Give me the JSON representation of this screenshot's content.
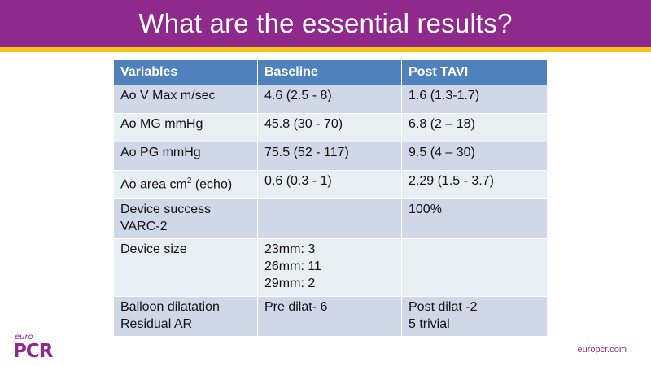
{
  "slide": {
    "title": "What are the essential results?",
    "brand_color": "#8f2a8c",
    "accent_color": "#f7c516"
  },
  "table": {
    "header": [
      "Variables",
      "Baseline",
      "Post TAVI"
    ],
    "rows": [
      {
        "variable": "Ao V Max m/sec",
        "baseline": "4.6 (2.5 - 8)",
        "post": " 1.6 (1.3-1.7)"
      },
      {
        "variable": "Ao MG mmHg",
        "baseline": "45.8 (30 - 70)",
        "post": " 6.8 (2 – 18)"
      },
      {
        "variable": "Ao PG mmHg",
        "baseline": "75.5 (52 - 117)",
        "post": " 9.5 (4 – 30)"
      },
      {
        "variable_pre": "Ao area cm",
        "variable_sup": "2",
        "variable_post": " (echo)",
        "baseline": "0.6 (0.3 - 1)",
        "post": " 2.29 (1.5 - 3.7)"
      },
      {
        "variable": "Device success\nVARC-2",
        "baseline": "",
        "post": "100%"
      },
      {
        "variable": "Device size",
        "baseline": "23mm: 3\n26mm: 11\n29mm: 2",
        "post": ""
      },
      {
        "variable": "Balloon dilatation\nResidual AR",
        "baseline": "Pre dilat- 6",
        "post": "Post dilat -2\n5 trivial"
      }
    ],
    "header_color": "#4f81bd",
    "row_color_a": "#d0d8e8",
    "row_color_b": "#e9edf4"
  },
  "footer": {
    "logo_small": "euro",
    "logo_main": "PCR",
    "website": "europcr.com"
  }
}
